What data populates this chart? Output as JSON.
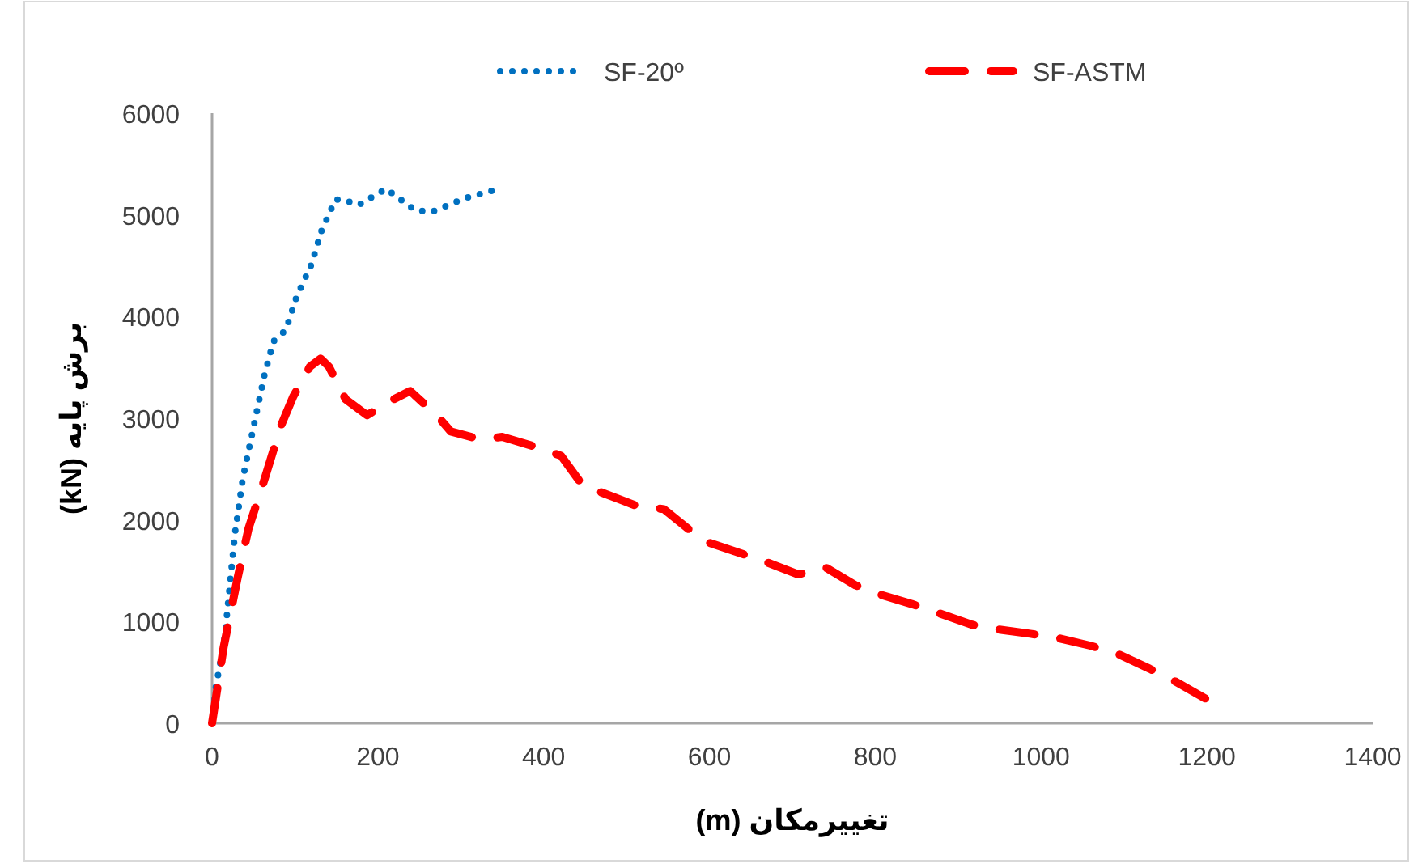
{
  "chart_data": {
    "type": "line",
    "xlabel": "تغییرمکان (m)",
    "ylabel": "برش پایه (kN)",
    "xlim": [
      0,
      1400
    ],
    "xticks": [
      0,
      200,
      400,
      600,
      800,
      1000,
      1200,
      1400
    ],
    "ylim": [
      0,
      6000
    ],
    "yticks": [
      0,
      1000,
      2000,
      3000,
      4000,
      5000,
      6000
    ],
    "grid": false,
    "legend": "top",
    "series": [
      {
        "name": "SF-20º",
        "color": "#0070c0",
        "line_style": "dotted",
        "x": [
          0,
          4.5,
          8,
          15.6,
          21.5,
          28,
          37,
          50,
          63,
          74,
          89,
          102,
          120,
          132,
          149,
          161,
          177,
          210,
          245,
          265,
          304,
          346
        ],
        "values": [
          0,
          350,
          509,
          864,
          1369,
          1889,
          2403,
          2913,
          3417,
          3756,
          3868,
          4197,
          4515,
          4843,
          5152,
          5141,
          5098,
          5257,
          5045,
          5030,
          5161,
          5257
        ]
      },
      {
        "name": "SF-ASTM",
        "color": "#ff0000",
        "line_style": "dashed",
        "x": [
          0,
          14,
          31,
          44,
          63,
          83,
          98,
          118,
          131,
          141,
          161,
          187,
          213,
          239,
          271,
          288,
          324,
          350,
          389,
          421,
          447,
          473,
          512,
          545,
          574,
          597,
          668,
          707,
          740,
          776,
          805,
          844,
          877,
          916,
          948,
          987,
          1020,
          1059,
          1092,
          1131,
          1160,
          1198
        ],
        "values": [
          0,
          748,
          1437,
          1915,
          2392,
          2924,
          3215,
          3507,
          3586,
          3507,
          3188,
          3029,
          3162,
          3268,
          3029,
          2870,
          2790,
          2817,
          2722,
          2631,
          2340,
          2260,
          2138,
          2106,
          1915,
          1783,
          1587,
          1464,
          1533,
          1358,
          1268,
          1173,
          1082,
          971,
          923,
          880,
          839,
          764,
          684,
          536,
          419,
          244
        ]
      }
    ]
  }
}
